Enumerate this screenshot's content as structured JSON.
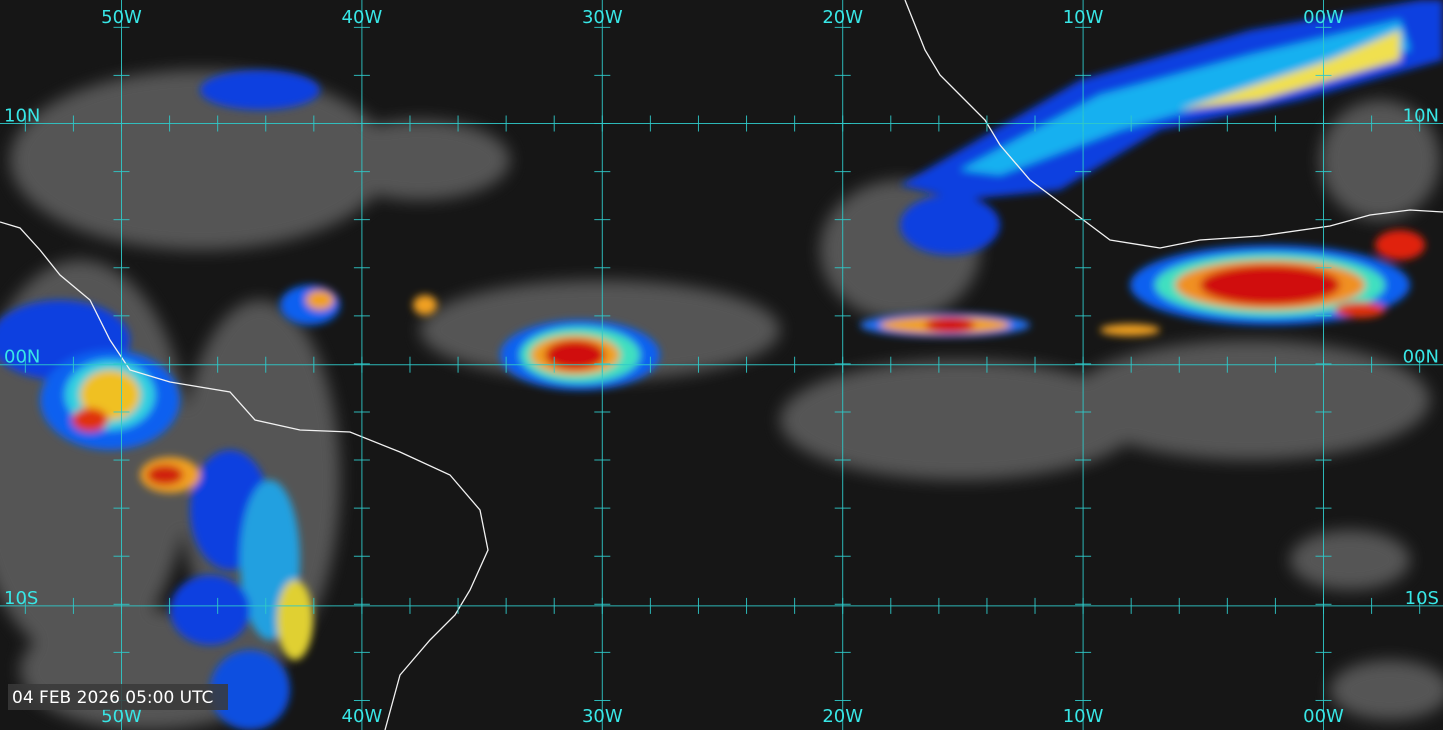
{
  "timestamp": "04 FEB 2026 05:00 UTC",
  "longitudes": [
    "50W",
    "40W",
    "30W",
    "20W",
    "10W",
    "00W"
  ],
  "latitudes": [
    "10N",
    "00N",
    "10S"
  ]
}
